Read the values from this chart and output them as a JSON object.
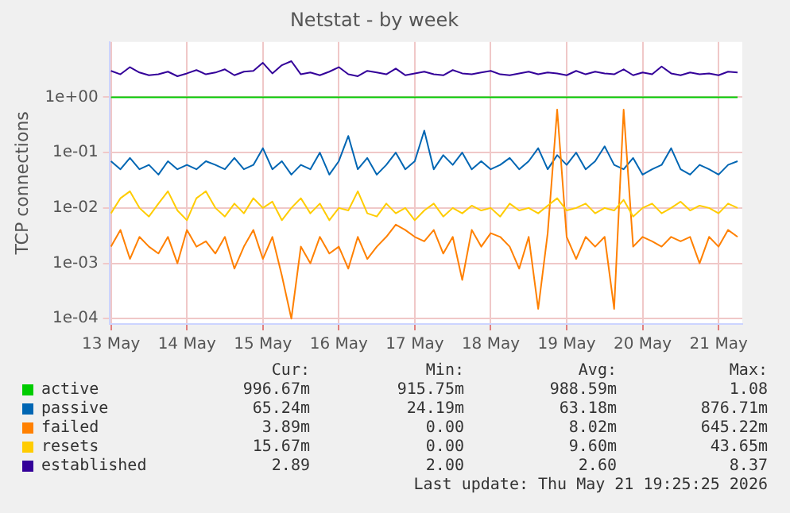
{
  "chart_data": {
    "type": "line",
    "title": "Netstat - by week",
    "ylabel": "TCP connections",
    "log": "y",
    "grid": true,
    "legend": "bottom",
    "marker": "none",
    "line_style": "solid",
    "x": [
      "2026-05-13T12:00",
      "2026-05-13T15:00",
      "2026-05-13T18:00",
      "2026-05-13T21:00",
      "2026-05-14T00:00",
      "2026-05-14T03:00",
      "2026-05-14T06:00",
      "2026-05-14T09:00",
      "2026-05-14T12:00",
      "2026-05-14T15:00",
      "2026-05-14T18:00",
      "2026-05-14T21:00",
      "2026-05-15T00:00",
      "2026-05-15T03:00",
      "2026-05-15T06:00",
      "2026-05-15T09:00",
      "2026-05-15T12:00",
      "2026-05-15T15:00",
      "2026-05-15T18:00",
      "2026-05-15T21:00",
      "2026-05-16T00:00",
      "2026-05-16T03:00",
      "2026-05-16T06:00",
      "2026-05-16T09:00",
      "2026-05-16T12:00",
      "2026-05-16T15:00",
      "2026-05-16T18:00",
      "2026-05-16T21:00",
      "2026-05-17T00:00",
      "2026-05-17T03:00",
      "2026-05-17T06:00",
      "2026-05-17T09:00",
      "2026-05-17T12:00",
      "2026-05-17T15:00",
      "2026-05-17T18:00",
      "2026-05-17T21:00",
      "2026-05-18T00:00",
      "2026-05-18T03:00",
      "2026-05-18T06:00",
      "2026-05-18T09:00",
      "2026-05-18T12:00",
      "2026-05-18T15:00",
      "2026-05-18T18:00",
      "2026-05-18T21:00",
      "2026-05-19T00:00",
      "2026-05-19T03:00",
      "2026-05-19T06:00",
      "2026-05-19T09:00",
      "2026-05-19T12:00",
      "2026-05-19T15:00",
      "2026-05-19T18:00",
      "2026-05-19T21:00",
      "2026-05-20T00:00",
      "2026-05-20T03:00",
      "2026-05-20T06:00",
      "2026-05-20T09:00",
      "2026-05-20T12:00",
      "2026-05-20T15:00",
      "2026-05-20T18:00",
      "2026-05-20T21:00",
      "2026-05-21T00:00",
      "2026-05-21T03:00",
      "2026-05-21T06:00",
      "2026-05-21T09:00",
      "2026-05-21T12:00",
      "2026-05-21T15:00",
      "2026-05-21T18:00"
    ],
    "xlim": [
      "2026-05-13T11:30",
      "2026-05-21T19:30"
    ],
    "xticks": [
      {
        "value": "2026-05-13T12:00",
        "label": "13 May"
      },
      {
        "value": "2026-05-14T12:00",
        "label": "14 May"
      },
      {
        "value": "2026-05-15T12:00",
        "label": "15 May"
      },
      {
        "value": "2026-05-16T12:00",
        "label": "16 May"
      },
      {
        "value": "2026-05-17T12:00",
        "label": "17 May"
      },
      {
        "value": "2026-05-18T12:00",
        "label": "18 May"
      },
      {
        "value": "2026-05-19T12:00",
        "label": "19 May"
      },
      {
        "value": "2026-05-20T12:00",
        "label": "20 May"
      },
      {
        "value": "2026-05-21T12:00",
        "label": "21 May"
      }
    ],
    "ylim": [
      8e-05,
      10
    ],
    "yticks": [
      {
        "value": 0.0001,
        "label": "1e-04"
      },
      {
        "value": 0.001,
        "label": "1e-03"
      },
      {
        "value": 0.01,
        "label": "1e-02"
      },
      {
        "value": 0.1,
        "label": "1e-01"
      },
      {
        "value": 1,
        "label": "1e+00"
      }
    ],
    "series": [
      {
        "name": "active",
        "color": "#00cc00",
        "values": [
          1,
          1,
          1,
          1,
          1,
          1,
          1,
          1,
          1,
          1,
          1,
          1,
          1,
          1,
          1,
          1,
          1,
          1,
          1,
          1,
          1,
          1,
          1,
          1,
          1,
          1,
          1,
          1,
          1,
          1,
          1,
          1,
          1,
          1,
          1,
          1,
          1,
          1,
          1,
          1,
          1,
          1,
          1,
          1,
          1,
          1,
          1,
          1,
          1,
          1,
          1,
          1,
          1,
          1,
          1,
          1,
          1,
          1,
          1,
          1,
          1,
          1,
          1,
          1,
          1,
          1,
          1
        ]
      },
      {
        "name": "passive",
        "color": "#0066b3",
        "values": [
          0.07,
          0.05,
          0.08,
          0.05,
          0.06,
          0.04,
          0.07,
          0.05,
          0.06,
          0.05,
          0.07,
          0.06,
          0.05,
          0.08,
          0.05,
          0.06,
          0.12,
          0.05,
          0.07,
          0.04,
          0.06,
          0.05,
          0.1,
          0.04,
          0.07,
          0.2,
          0.05,
          0.08,
          0.04,
          0.06,
          0.1,
          0.05,
          0.07,
          0.25,
          0.05,
          0.09,
          0.06,
          0.1,
          0.05,
          0.07,
          0.05,
          0.06,
          0.08,
          0.05,
          0.07,
          0.12,
          0.05,
          0.09,
          0.06,
          0.1,
          0.05,
          0.07,
          0.13,
          0.06,
          0.05,
          0.08,
          0.04,
          0.05,
          0.06,
          0.12,
          0.05,
          0.04,
          0.06,
          0.05,
          0.04,
          0.06,
          0.07
        ]
      },
      {
        "name": "failed",
        "color": "#ff8000",
        "values": [
          0.002,
          0.004,
          0.0012,
          0.003,
          0.002,
          0.0015,
          0.003,
          0.001,
          0.004,
          0.002,
          0.0025,
          0.0015,
          0.003,
          0.0008,
          0.002,
          0.004,
          0.0012,
          0.003,
          0.0006,
          0.0001,
          0.002,
          0.001,
          0.003,
          0.0015,
          0.002,
          0.0008,
          0.003,
          0.0012,
          0.002,
          0.003,
          0.005,
          0.004,
          0.003,
          0.0025,
          0.004,
          0.0015,
          0.003,
          0.0005,
          0.004,
          0.002,
          0.0035,
          0.003,
          0.002,
          0.0008,
          0.003,
          0.00015,
          0.0035,
          0.6,
          0.003,
          0.0012,
          0.003,
          0.002,
          0.003,
          0.00015,
          0.6,
          0.002,
          0.003,
          0.0025,
          0.002,
          0.003,
          0.0025,
          0.003,
          0.001,
          0.003,
          0.002,
          0.004,
          0.003
        ]
      },
      {
        "name": "resets",
        "color": "#ffcc00",
        "values": [
          0.008,
          0.015,
          0.02,
          0.01,
          0.007,
          0.012,
          0.02,
          0.009,
          0.006,
          0.015,
          0.02,
          0.01,
          0.007,
          0.012,
          0.008,
          0.015,
          0.01,
          0.013,
          0.006,
          0.01,
          0.015,
          0.008,
          0.012,
          0.006,
          0.01,
          0.009,
          0.02,
          0.008,
          0.007,
          0.012,
          0.008,
          0.01,
          0.006,
          0.009,
          0.012,
          0.007,
          0.01,
          0.008,
          0.011,
          0.009,
          0.01,
          0.007,
          0.012,
          0.009,
          0.01,
          0.008,
          0.011,
          0.015,
          0.009,
          0.01,
          0.012,
          0.008,
          0.01,
          0.009,
          0.014,
          0.007,
          0.01,
          0.012,
          0.008,
          0.01,
          0.013,
          0.009,
          0.011,
          0.01,
          0.008,
          0.012,
          0.01
        ]
      },
      {
        "name": "established",
        "color": "#330099",
        "values": [
          3.0,
          2.6,
          3.5,
          2.8,
          2.5,
          2.6,
          2.9,
          2.4,
          2.7,
          3.1,
          2.6,
          2.8,
          3.2,
          2.5,
          2.9,
          3.0,
          4.2,
          2.7,
          3.8,
          4.5,
          2.6,
          2.8,
          2.5,
          2.9,
          3.5,
          2.6,
          2.4,
          3.0,
          2.8,
          2.6,
          3.3,
          2.5,
          2.7,
          2.9,
          2.6,
          2.5,
          3.1,
          2.7,
          2.6,
          2.8,
          3.0,
          2.6,
          2.5,
          2.7,
          2.9,
          2.6,
          2.8,
          2.7,
          2.5,
          3.0,
          2.6,
          2.9,
          2.7,
          2.6,
          3.2,
          2.5,
          2.8,
          2.6,
          3.6,
          2.7,
          2.5,
          2.8,
          2.6,
          2.7,
          2.5,
          2.9,
          2.8
        ]
      }
    ],
    "annotations": [
      "Cur:",
      "Min:",
      "Avg:",
      "Max:",
      "996.67m",
      "915.75m",
      "988.59m",
      "1.08",
      "65.24m",
      "24.19m",
      "63.18m",
      "876.71m",
      "3.89m",
      "0.00",
      "8.02m",
      "645.22m",
      "15.67m",
      "0.00",
      "9.60m",
      "43.65m",
      "2.89",
      "2.00",
      "2.60",
      "8.37",
      "Last update: Thu May 21 19:25:25 2026"
    ]
  }
}
